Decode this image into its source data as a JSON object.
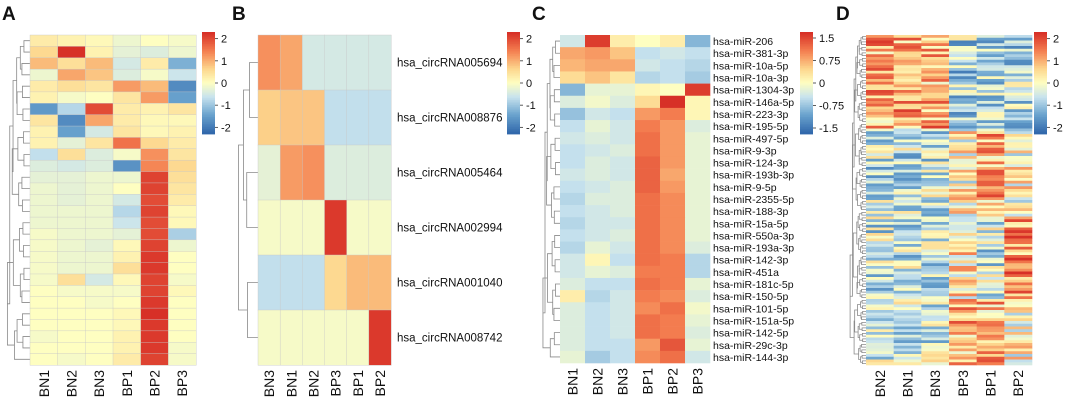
{
  "panels": [
    {
      "id": "A",
      "label": "A",
      "columns": [
        "BN1",
        "BN2",
        "BN3",
        "BP1",
        "BP2",
        "BP3"
      ],
      "row_labels": [],
      "colorbar_ticks": [
        2,
        1,
        0,
        -1,
        -2
      ],
      "vmin": -2.3,
      "vmax": 2.3,
      "values": [
        [
          0.3,
          0.2,
          0.1,
          -0.2,
          0.0,
          -0.1
        ],
        [
          0.6,
          2.3,
          0.2,
          -0.3,
          -0.4,
          -0.2
        ],
        [
          0.9,
          0.5,
          0.9,
          -0.5,
          0.3,
          -1.3
        ],
        [
          -0.2,
          1.1,
          0.8,
          -0.4,
          -0.1,
          -0.6
        ],
        [
          0.3,
          0.5,
          0.4,
          1.2,
          0.9,
          -1.8
        ],
        [
          0.2,
          -0.1,
          0.0,
          0.4,
          1.2,
          -1.5
        ],
        [
          -1.6,
          -0.8,
          2.0,
          0.3,
          0.2,
          0.4
        ],
        [
          0.4,
          -1.8,
          1.1,
          0.3,
          0.1,
          0.1
        ],
        [
          0.2,
          -1.5,
          -0.5,
          0.4,
          0.1,
          0.2
        ],
        [
          0.2,
          -0.3,
          0.4,
          1.6,
          0.6,
          0.3
        ],
        [
          -0.7,
          0.5,
          -0.4,
          -0.1,
          1.3,
          0.4
        ],
        [
          -0.4,
          -0.5,
          -0.4,
          -1.7,
          1.4,
          0.6
        ],
        [
          -0.3,
          -0.3,
          -0.2,
          -0.2,
          2.1,
          0.5
        ],
        [
          -0.2,
          -0.3,
          -0.2,
          0.0,
          2.1,
          0.4
        ],
        [
          -0.2,
          -0.3,
          -0.2,
          -0.5,
          2.0,
          0.3
        ],
        [
          -0.2,
          -0.2,
          -0.2,
          -0.8,
          2.1,
          0.1
        ],
        [
          -0.2,
          -0.2,
          -0.2,
          -0.6,
          2.0,
          0.1
        ],
        [
          -0.1,
          -0.2,
          -0.2,
          -0.3,
          2.0,
          -0.9
        ],
        [
          -0.1,
          -0.2,
          -0.3,
          0.1,
          2.1,
          -0.2
        ],
        [
          -0.1,
          -0.2,
          -0.2,
          0.2,
          2.2,
          0.0
        ],
        [
          -0.1,
          -0.2,
          -0.2,
          0.5,
          2.2,
          0.0
        ],
        [
          -0.1,
          0.5,
          -0.5,
          0.1,
          2.1,
          -0.1
        ],
        [
          0.0,
          -0.1,
          -0.1,
          -0.1,
          2.1,
          0.1
        ],
        [
          0.0,
          0.0,
          -0.1,
          0.0,
          2.2,
          0.0
        ],
        [
          0.0,
          0.0,
          0.0,
          0.1,
          2.3,
          0.0
        ],
        [
          0.0,
          0.0,
          0.0,
          0.1,
          2.2,
          0.0
        ],
        [
          -0.1,
          0.0,
          0.0,
          0.2,
          2.2,
          0.0
        ],
        [
          0.0,
          0.0,
          0.0,
          0.2,
          2.2,
          -0.1
        ],
        [
          0.0,
          -0.1,
          0.0,
          0.3,
          2.1,
          -0.1
        ]
      ]
    },
    {
      "id": "B",
      "label": "B",
      "columns": [
        "BN3",
        "BN1",
        "BN2",
        "BP3",
        "BP1",
        "BP2"
      ],
      "row_labels": [
        "hsa_circRNA005694",
        "hsa_circRNA008876",
        "hsa_circRNA005464",
        "hsa_circRNA002994",
        "hsa_circRNA001040",
        "hsa_circRNA008742"
      ],
      "colorbar_ticks": [
        2,
        1,
        0,
        -1,
        -2
      ],
      "vmin": -2.3,
      "vmax": 2.3,
      "values": [
        [
          1.3,
          1.1,
          -0.5,
          -0.5,
          -0.5,
          -0.5
        ],
        [
          0.7,
          0.8,
          0.8,
          -0.7,
          -0.7,
          -0.7
        ],
        [
          -0.3,
          1.2,
          1.3,
          -0.4,
          -0.4,
          -0.4
        ],
        [
          -0.1,
          -0.1,
          -0.1,
          2.2,
          -0.1,
          -0.1
        ],
        [
          -0.7,
          -0.7,
          -0.7,
          0.6,
          0.9,
          0.9
        ],
        [
          -0.1,
          -0.1,
          -0.1,
          -0.1,
          -0.1,
          2.2
        ]
      ]
    },
    {
      "id": "C",
      "label": "C",
      "columns": [
        "BN1",
        "BN2",
        "BN3",
        "BP1",
        "BP2",
        "BP3"
      ],
      "row_labels": [
        "hsa-miR-206",
        "hsa-miR-381-3p",
        "hsa-miR-10a-5p",
        "hsa-miR-10a-3p",
        "hsa-miR-1304-3p",
        "hsa-miR-146a-5p",
        "hsa-miR-223-3p",
        "hsa-miR-195-5p",
        "hsa-miR-497-5p",
        "hsa-miR-9-3p",
        "hsa-miR-124-3p",
        "hsa-miR-193b-3p",
        "hsa-miR-9-5p",
        "hsa-miR-2355-5p",
        "hsa-miR-188-3p",
        "hsa-miR-15a-5p",
        "hsa-miR-550a-3p",
        "hsa-miR-193a-3p",
        "hsa-miR-142-3p",
        "hsa-miR-451a",
        "hsa-miR-181c-5p",
        "hsa-miR-150-5p",
        "hsa-miR-101-5p",
        "hsa-miR-151a-5p",
        "hsa-miR-142-5p",
        "hsa-miR-29c-3p",
        "hsa-miR-144-3p"
      ],
      "colorbar_ticks": [
        "1.5",
        "0.75",
        "0",
        "-0.75",
        "-1.5"
      ],
      "vmin": -1.7,
      "vmax": 1.7,
      "values": [
        [
          -0.4,
          1.6,
          0.2,
          0.0,
          0.2,
          -0.9
        ],
        [
          0.8,
          0.9,
          0.6,
          -0.5,
          -0.4,
          -0.5
        ],
        [
          0.7,
          0.8,
          0.8,
          -0.4,
          -0.5,
          -0.6
        ],
        [
          0.4,
          0.6,
          0.3,
          -0.6,
          -0.5,
          -0.7
        ],
        [
          -0.9,
          -0.2,
          -0.2,
          0.1,
          0.0,
          1.6
        ],
        [
          -0.3,
          -0.1,
          -0.3,
          0.4,
          1.7,
          0.1
        ],
        [
          -0.8,
          -0.4,
          -0.5,
          0.9,
          1.1,
          0.1
        ],
        [
          -0.5,
          -0.2,
          -0.4,
          1.1,
          0.9,
          -0.3
        ],
        [
          -0.4,
          -0.3,
          -0.4,
          1.2,
          0.9,
          -0.2
        ],
        [
          -0.5,
          -0.4,
          -0.3,
          1.2,
          0.9,
          -0.2
        ],
        [
          -0.5,
          -0.3,
          -0.4,
          1.3,
          0.9,
          -0.2
        ],
        [
          -0.4,
          -0.3,
          -0.4,
          1.3,
          0.8,
          -0.2
        ],
        [
          -0.5,
          -0.4,
          -0.3,
          1.3,
          0.9,
          -0.2
        ],
        [
          -0.6,
          -0.3,
          -0.3,
          1.2,
          1.0,
          -0.2
        ],
        [
          -0.5,
          -0.4,
          -0.3,
          1.2,
          1.0,
          -0.2
        ],
        [
          -0.6,
          -0.4,
          -0.4,
          1.2,
          1.0,
          -0.2
        ],
        [
          -0.5,
          -0.4,
          -0.3,
          1.2,
          1.0,
          -0.2
        ],
        [
          -0.6,
          -0.2,
          -0.4,
          1.2,
          1.0,
          -0.3
        ],
        [
          -0.4,
          0.1,
          -0.5,
          1.2,
          1.1,
          -0.6
        ],
        [
          -0.4,
          -0.2,
          -0.3,
          1.1,
          1.1,
          -0.6
        ],
        [
          -0.3,
          -0.5,
          -0.5,
          1.2,
          1.1,
          -0.2
        ],
        [
          0.2,
          -0.6,
          -0.4,
          1.1,
          1.0,
          -0.3
        ],
        [
          -0.3,
          -0.5,
          -0.4,
          1.0,
          1.2,
          -0.1
        ],
        [
          -0.3,
          -0.5,
          -0.4,
          1.2,
          1.1,
          -0.2
        ],
        [
          -0.3,
          -0.5,
          -0.4,
          1.2,
          1.1,
          -0.3
        ],
        [
          -0.3,
          -0.5,
          -0.5,
          0.9,
          1.4,
          -0.2
        ],
        [
          -0.2,
          -0.7,
          -0.5,
          1.0,
          1.2,
          -0.4
        ]
      ]
    },
    {
      "id": "D",
      "label": "D",
      "columns": [
        "BN2",
        "BN1",
        "BN3",
        "BP3",
        "BP1",
        "BP2"
      ],
      "row_labels": [],
      "colorbar_ticks": [
        2,
        1,
        0,
        -1,
        -2
      ],
      "vmin": -2.3,
      "vmax": 2.3,
      "generated_rows": 120,
      "seed": 7
    }
  ]
}
